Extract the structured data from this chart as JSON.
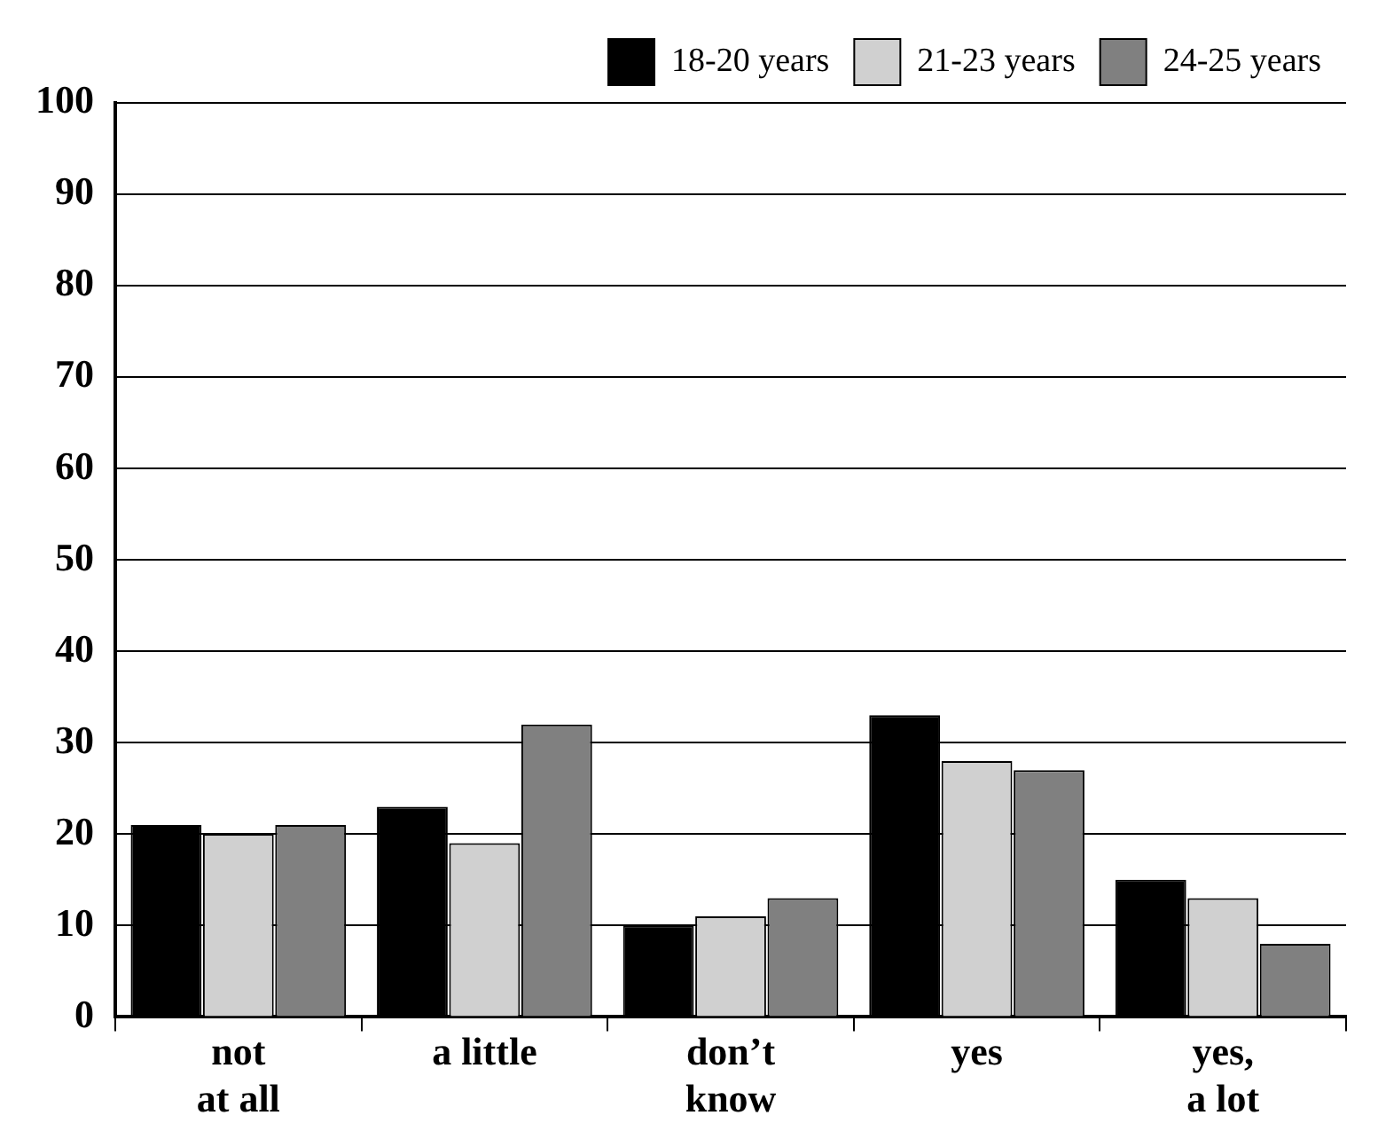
{
  "chart_data": {
    "type": "bar",
    "categories": [
      "not\nat all",
      "a little",
      "don’t\nknow",
      "yes",
      "yes,\na lot"
    ],
    "series": [
      {
        "name": "18-20 years",
        "color": "#000000",
        "values": [
          21,
          23,
          10,
          33,
          15
        ]
      },
      {
        "name": "21-23 years",
        "color": "#d0d0d0",
        "values": [
          20,
          19,
          11,
          28,
          13
        ]
      },
      {
        "name": "24-25 years",
        "color": "#808080",
        "values": [
          21,
          32,
          13,
          27,
          8
        ]
      }
    ],
    "ylim": [
      0,
      100
    ],
    "yticks": [
      0,
      10,
      20,
      30,
      40,
      50,
      60,
      70,
      80,
      90,
      100
    ],
    "grid": "y",
    "legend": "top right"
  }
}
